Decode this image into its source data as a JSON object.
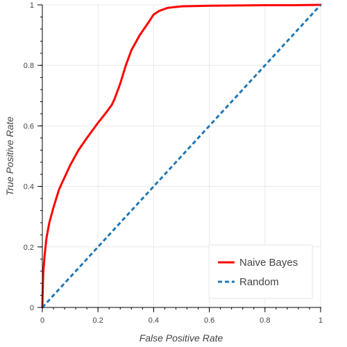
{
  "chart_data": {
    "type": "line",
    "title": "",
    "xlabel": "False Positive Rate",
    "ylabel": "True Positive Rate",
    "xlim": [
      0,
      1
    ],
    "ylim": [
      0,
      1
    ],
    "grid": true,
    "legend_position": "bottom-right",
    "x_ticks": [
      "0",
      "0.2",
      "0.4",
      "0.6",
      "0.8",
      "1"
    ],
    "y_ticks": [
      "0",
      "0.2",
      "0.4",
      "0.6",
      "0.8",
      "1"
    ],
    "series": [
      {
        "name": "Naive Bayes",
        "color": "#ff0000",
        "style": "solid",
        "x": [
          0,
          0.003,
          0.008,
          0.015,
          0.025,
          0.04,
          0.06,
          0.08,
          0.1,
          0.13,
          0.16,
          0.2,
          0.23,
          0.25,
          0.26,
          0.28,
          0.3,
          0.32,
          0.35,
          0.38,
          0.4,
          0.42,
          0.45,
          0.5,
          0.6,
          0.7,
          0.8,
          0.9,
          1.0
        ],
        "y": [
          0,
          0.11,
          0.17,
          0.23,
          0.28,
          0.33,
          0.39,
          0.43,
          0.47,
          0.52,
          0.56,
          0.61,
          0.645,
          0.67,
          0.69,
          0.74,
          0.8,
          0.85,
          0.9,
          0.94,
          0.968,
          0.98,
          0.99,
          0.995,
          0.997,
          0.998,
          0.999,
          0.999,
          1.0
        ]
      },
      {
        "name": "Random",
        "color": "#1f77b4",
        "style": "dashed",
        "x": [
          0,
          1
        ],
        "y": [
          0,
          1
        ]
      }
    ]
  }
}
